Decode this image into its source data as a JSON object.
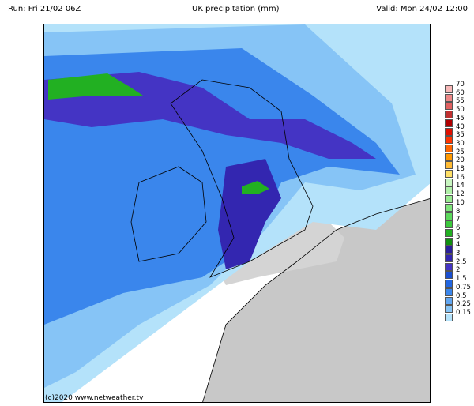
{
  "header": {
    "run": "Run: Fri 21/02 06Z",
    "title": "UK precipitation (mm)",
    "valid": "Valid: Mon 24/02 12:00"
  },
  "copyright": "(c)2020 www.netweather.tv",
  "legend": {
    "labels": [
      "70",
      "60",
      "55",
      "50",
      "45",
      "40",
      "35",
      "30",
      "25",
      "20",
      "18",
      "16",
      "14",
      "12",
      "10",
      "8",
      "7",
      "6",
      "5",
      "4",
      "3",
      "2.5",
      "2",
      "1.5",
      "0.75",
      "0.5",
      "0.25",
      "0.15"
    ],
    "colors": [
      "#f7b8b8",
      "#ee8888",
      "#e06060",
      "#c03030",
      "#b00000",
      "#e01000",
      "#ff3300",
      "#ff6600",
      "#ff9900",
      "#ffbb33",
      "#ffe066",
      "#c8f5c0",
      "#b0f0a8",
      "#98eb90",
      "#7ee47a",
      "#5cd95c",
      "#3cc83c",
      "#22b022",
      "#109010",
      "#2a1e9a",
      "#3326b0",
      "#4434c4",
      "#1a4fd0",
      "#2266e0",
      "#3a86ec",
      "#60a6f2",
      "#86c4f6",
      "#b4e2fa"
    ]
  },
  "colors": {
    "land": "#d8d8d8",
    "sea": "#ffffff",
    "light_rain": "#b4e2fa",
    "moderate": "#60a6f2",
    "heavy": "#3326b0",
    "very_heavy": "#22b022"
  }
}
